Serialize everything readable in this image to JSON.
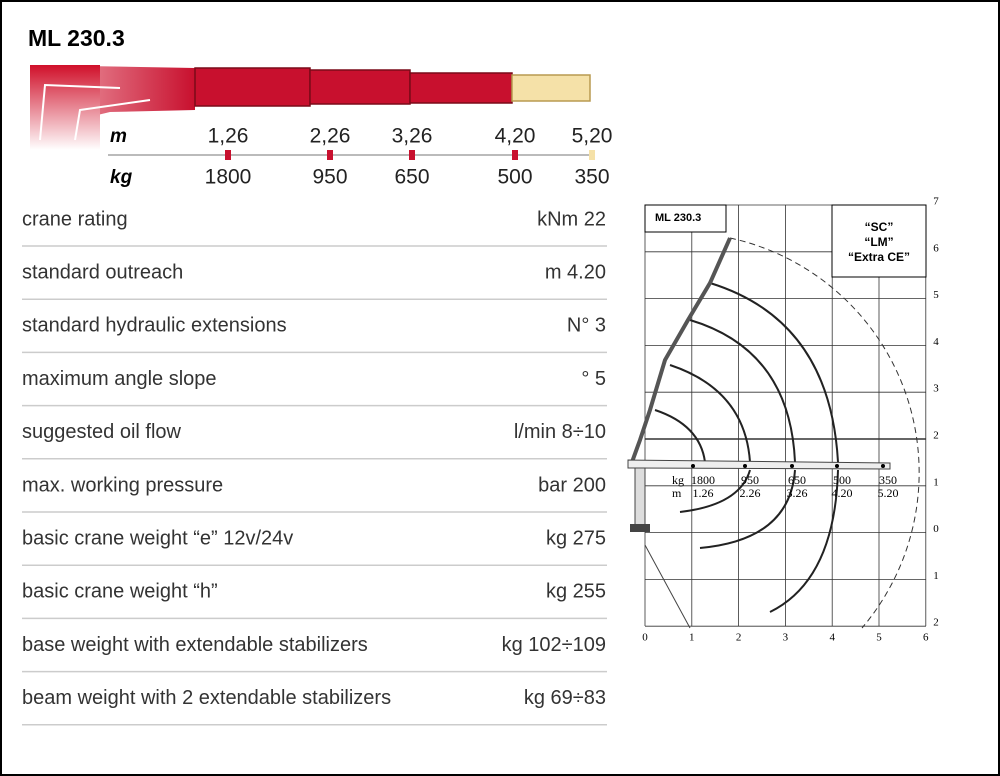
{
  "header": {
    "title": "ML 230.3"
  },
  "scale": {
    "m_label": "m",
    "kg_label": "kg",
    "m": [
      "1,26",
      "2,26",
      "3,26",
      "4,20",
      "5,20"
    ],
    "kg": [
      "1800",
      "950",
      "650",
      "500",
      "350"
    ]
  },
  "table": {
    "rows": [
      [
        "crane rating",
        "kNm 22"
      ],
      [
        "standard outreach",
        "m 4.20"
      ],
      [
        "standard hydraulic extensions",
        "N° 3"
      ],
      [
        "maximum angle slope",
        "° 5"
      ],
      [
        "suggested oil flow",
        "l/min 8÷10"
      ],
      [
        "max. working pressure",
        "bar 200"
      ],
      [
        "basic crane weight “e” 12v/24v",
        "kg 275"
      ],
      [
        "basic crane weight “h”",
        "kg 255"
      ],
      [
        "base weight with extendable stabilizers",
        "kg 102÷109"
      ],
      [
        "beam weight with 2 extendable stabilizers",
        "kg 69÷83"
      ]
    ]
  },
  "diagram": {
    "title": "ML 230.3",
    "versions": [
      "“SC”",
      "“LM”",
      "“Extra CE”"
    ],
    "x_axis": [
      "0",
      "1",
      "2",
      "3",
      "4",
      "5",
      "6"
    ],
    "y_axis": [
      "7",
      "6",
      "5",
      "4",
      "3",
      "2",
      "1",
      "0",
      "1",
      "2"
    ],
    "kg_label": "kg",
    "m_label": "m",
    "kg": [
      "1800",
      "950",
      "650",
      "500",
      "350"
    ],
    "m": [
      "1.26",
      "2.26",
      "3.26",
      "4.20",
      "5.20"
    ]
  }
}
